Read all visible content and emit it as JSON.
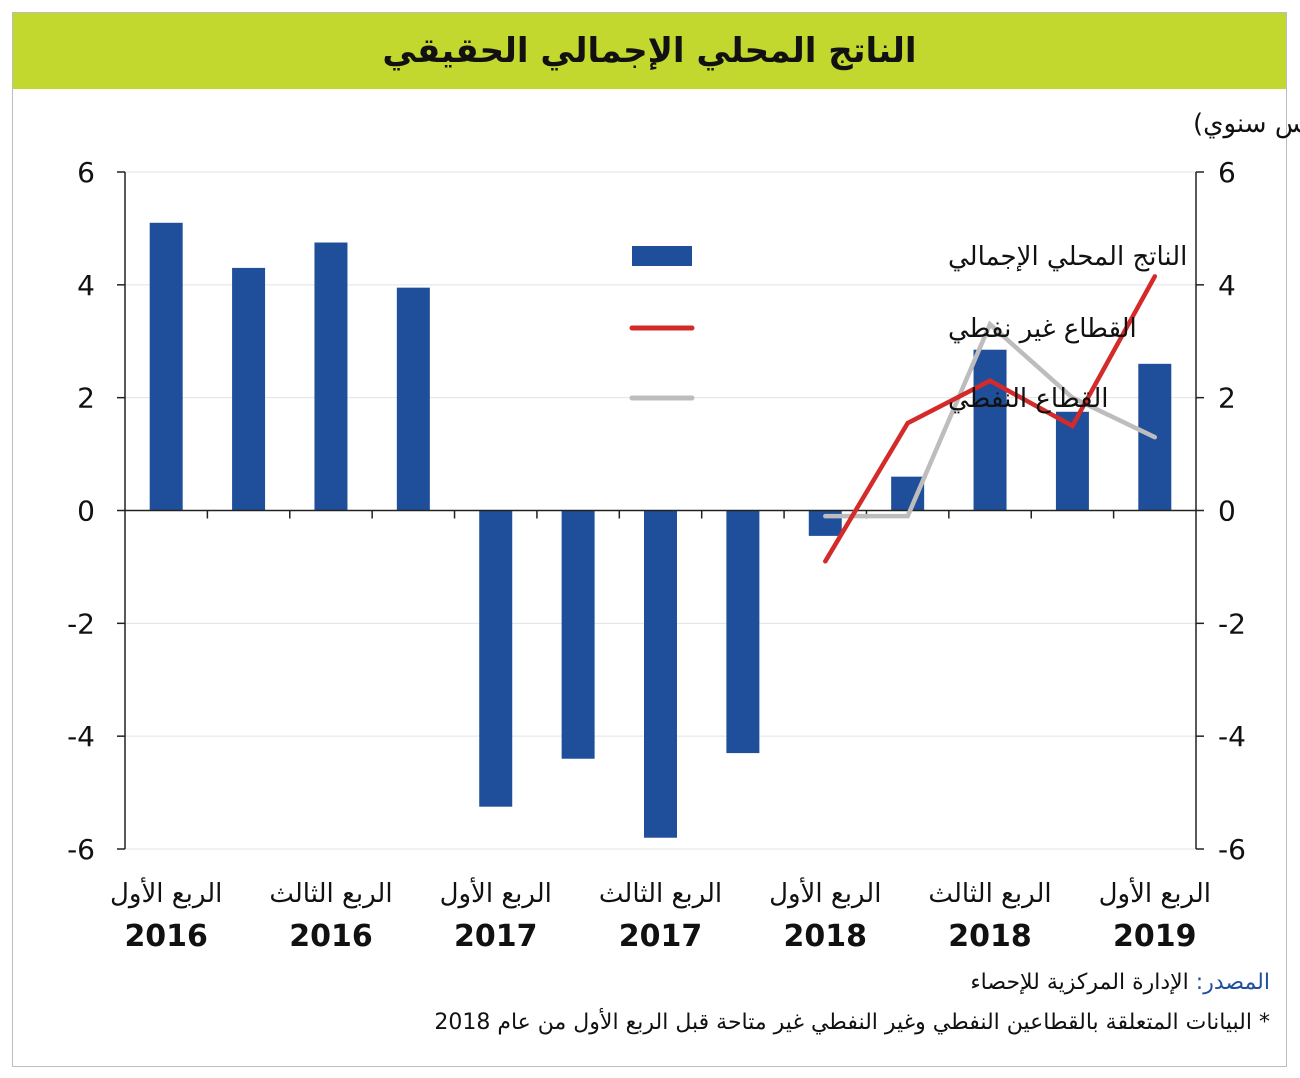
{
  "chart_data": {
    "type": "bar",
    "title": "الناتج المحلي الإجمالي الحقيقي",
    "unit_note": "(% على أساس سنوي)",
    "categories": [
      "Q1 2016",
      "Q2 2016",
      "Q3 2016",
      "Q4 2016",
      "Q1 2017",
      "Q2 2017",
      "Q3 2017",
      "Q4 2017",
      "Q1 2018",
      "Q2 2018",
      "Q3 2018",
      "Q4 2018",
      "Q1 2019"
    ],
    "x_tick_labels": [
      {
        "line1": "الربع الأول",
        "line2": "2016"
      },
      {
        "line1": "الربع الثالث",
        "line2": "2016"
      },
      {
        "line1": "الربع الأول",
        "line2": "2017"
      },
      {
        "line1": "الربع الثالث",
        "line2": "2017"
      },
      {
        "line1": "الربع الأول",
        "line2": "2018"
      },
      {
        "line1": "الربع الثالث",
        "line2": "2018"
      },
      {
        "line1": "الربع الأول",
        "line2": "2019"
      }
    ],
    "ylim": [
      -6,
      6
    ],
    "yticks": [
      6,
      4,
      2,
      0,
      -2,
      -4,
      -6
    ],
    "grid": true,
    "legend_position": "top-center",
    "series": [
      {
        "name": "الناتج المحلي الإجمالي",
        "kind": "bar",
        "color": "#1f4f9a",
        "values": [
          5.1,
          4.3,
          4.75,
          3.95,
          -5.25,
          -4.4,
          -5.8,
          -4.3,
          -0.45,
          0.6,
          2.85,
          1.75,
          2.6
        ]
      },
      {
        "name": "القطاع غير نفطي",
        "kind": "line",
        "color": "#d42a2a",
        "values": [
          null,
          null,
          null,
          null,
          null,
          null,
          null,
          null,
          -0.9,
          1.55,
          2.3,
          1.5,
          4.15
        ]
      },
      {
        "name": "القطاع النفطي",
        "kind": "line",
        "color": "#bdbdbd",
        "values": [
          null,
          null,
          null,
          null,
          null,
          null,
          null,
          null,
          -0.1,
          -0.1,
          3.3,
          2.0,
          1.3
        ]
      }
    ]
  },
  "source": {
    "label": "المصدر:",
    "text": " الإدارة المركزية للإحصاء"
  },
  "footnote": "* البيانات المتعلقة بالقطاعين النفطي وغير النفطي غير متاحة قبل الربع الأول من عام 2018"
}
